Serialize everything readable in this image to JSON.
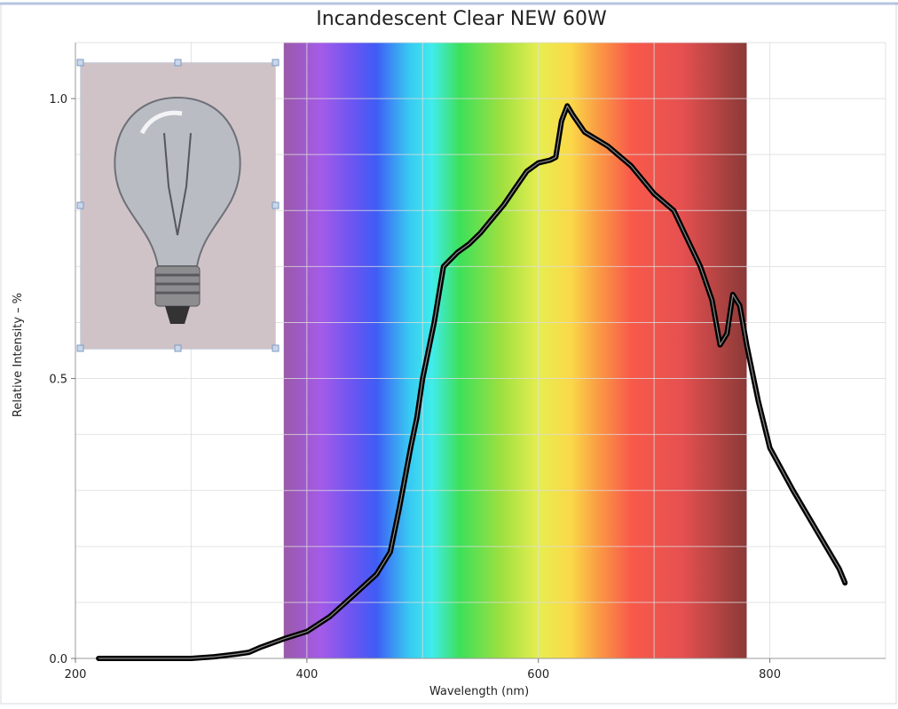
{
  "chart_data": {
    "type": "line",
    "title": "Incandescent Clear NEW 60W",
    "x_label": "Wavelength (nm)",
    "y_label": "Relative Intensity – %",
    "xlim": [
      200,
      900
    ],
    "ylim": [
      0,
      1.1
    ],
    "xticks": [
      200,
      400,
      600,
      800
    ],
    "yticks": [
      {
        "value": 0,
        "label": "0.0"
      },
      {
        "value": 0.5,
        "label": "0.5"
      },
      {
        "value": 1,
        "label": "1.0"
      }
    ],
    "x_grid": [
      200,
      300,
      400,
      500,
      600,
      700,
      800,
      900
    ],
    "y_grid": [
      0,
      0.1,
      0.2,
      0.3,
      0.4,
      0.5,
      0.6,
      0.7,
      0.8,
      0.9,
      1.0,
      1.1
    ],
    "grid": true,
    "spectrum_band": [
      380,
      780
    ],
    "series": [
      {
        "color": "#000000",
        "x": [
          220,
          300,
          320,
          340,
          350,
          360,
          380,
          400,
          420,
          441,
          460,
          472,
          480,
          490,
          495,
          500,
          510,
          518,
          530,
          540,
          550,
          560,
          570,
          580,
          590,
          600,
          610,
          615,
          620,
          625,
          630,
          640,
          660,
          680,
          700,
          717,
          740,
          750,
          757,
          763,
          768,
          774,
          780,
          790,
          800,
          820,
          840,
          860,
          865
        ],
        "values": [
          0,
          0,
          0.003,
          0.008,
          0.011,
          0.02,
          0.035,
          0.048,
          0.075,
          0.114,
          0.15,
          0.19,
          0.27,
          0.38,
          0.43,
          0.5,
          0.6,
          0.7,
          0.725,
          0.74,
          0.76,
          0.785,
          0.81,
          0.84,
          0.87,
          0.885,
          0.89,
          0.895,
          0.96,
          0.987,
          0.97,
          0.94,
          0.915,
          0.88,
          0.83,
          0.8,
          0.7,
          0.64,
          0.56,
          0.58,
          0.65,
          0.63,
          0.56,
          0.46,
          0.376,
          0.3,
          0.23,
          0.16,
          0.135
        ]
      }
    ]
  }
}
